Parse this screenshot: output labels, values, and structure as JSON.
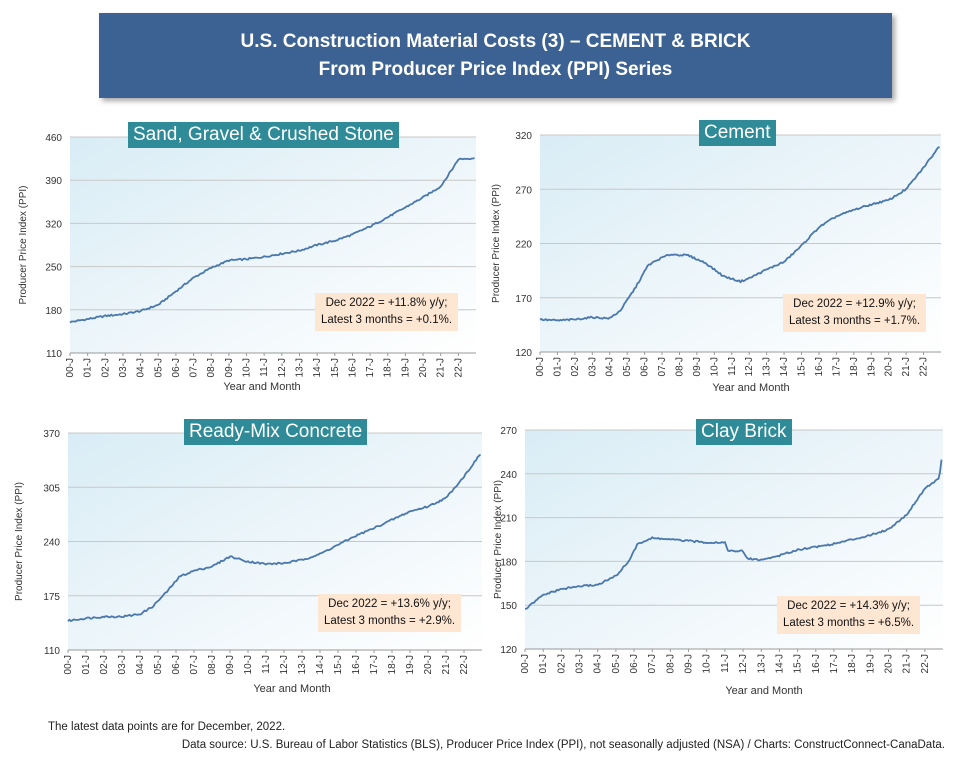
{
  "header": {
    "title_line1": "U.S. Construction Material Costs (3) – CEMENT & BRICK",
    "title_line2": "From Producer Price Index (PPI) Series"
  },
  "footer": {
    "latest": "The latest data points are for December, 2022.",
    "source": "Data source: U.S. Bureau of Labor Statistics (BLS), Producer Price Index (PPI), not seasonally adjusted (NSA) / Charts: ConstructConnect-CanaData."
  },
  "colors": {
    "line": "#4a78ad",
    "title_bg": "#2e8b97",
    "note_bg": "#fde6d2",
    "banner_bg": "#3c6193"
  },
  "chart_data": [
    {
      "type": "line",
      "title": "Sand, Gravel & Crushed Stone",
      "xlabel": "Year and Month",
      "ylabel": "Producer Price Index (PPI)",
      "ylim": [
        110,
        460
      ],
      "yticks": [
        110,
        180,
        250,
        320,
        390,
        460
      ],
      "xticks": [
        "00-J",
        "01-J",
        "02-J",
        "03-J",
        "04-J",
        "05-J",
        "06-J",
        "07-J",
        "08-J",
        "09-J",
        "10-J",
        "11-J",
        "12-J",
        "13-J",
        "14-J",
        "15-J",
        "16-J",
        "17-J",
        "18-J",
        "19-J",
        "20-J",
        "21-J",
        "22-J"
      ],
      "x_start_year": 2000,
      "grid": true,
      "note_line1": "Dec 2022 = +11.8% y/y;",
      "note_line2": "Latest 3 months = +0.1%.",
      "anchors": [
        [
          2000,
          160
        ],
        [
          2001,
          165
        ],
        [
          2002,
          170
        ],
        [
          2003,
          173
        ],
        [
          2004,
          178
        ],
        [
          2005,
          188
        ],
        [
          2006,
          210
        ],
        [
          2007,
          232
        ],
        [
          2008,
          248
        ],
        [
          2009,
          260
        ],
        [
          2010,
          262
        ],
        [
          2011,
          266
        ],
        [
          2012,
          271
        ],
        [
          2013,
          276
        ],
        [
          2014,
          285
        ],
        [
          2015,
          292
        ],
        [
          2016,
          302
        ],
        [
          2017,
          315
        ],
        [
          2018,
          330
        ],
        [
          2019,
          346
        ],
        [
          2020,
          362
        ],
        [
          2021,
          380
        ],
        [
          2021.7,
          410
        ],
        [
          2022,
          424
        ],
        [
          2022.92,
          426
        ]
      ]
    },
    {
      "type": "line",
      "title": "Cement",
      "xlabel": "Year and Month",
      "ylabel": "Producer Price Index (PPI)",
      "ylim": [
        120,
        320
      ],
      "yticks": [
        120,
        170,
        220,
        270,
        320
      ],
      "xticks": [
        "00-J",
        "01-J",
        "02-J",
        "03-J",
        "04-J",
        "05-J",
        "06-J",
        "07-J",
        "08-J",
        "09-J",
        "10-J",
        "11-J",
        "12-J",
        "13-J",
        "14-J",
        "15-J",
        "16-J",
        "17-J",
        "18-J",
        "19-J",
        "20-J",
        "21-J",
        "22-J"
      ],
      "x_start_year": 2000,
      "grid": true,
      "note_line1": "Dec 2022 = +12.9% y/y;",
      "note_line2": "Latest 3 months = +1.7%.",
      "anchors": [
        [
          2000,
          150
        ],
        [
          2001,
          149
        ],
        [
          2002,
          150
        ],
        [
          2003,
          152
        ],
        [
          2004,
          151
        ],
        [
          2004.6,
          158
        ],
        [
          2005.5,
          180
        ],
        [
          2006.2,
          200
        ],
        [
          2007,
          207
        ],
        [
          2007.5,
          210
        ],
        [
          2008.5,
          209
        ],
        [
          2009.5,
          202
        ],
        [
          2010.5,
          190
        ],
        [
          2011.5,
          185
        ],
        [
          2012,
          188
        ],
        [
          2013,
          196
        ],
        [
          2014,
          203
        ],
        [
          2015,
          218
        ],
        [
          2016,
          235
        ],
        [
          2017,
          245
        ],
        [
          2018,
          251
        ],
        [
          2019,
          256
        ],
        [
          2020,
          260
        ],
        [
          2021,
          270
        ],
        [
          2022,
          290
        ],
        [
          2022.92,
          310
        ]
      ]
    },
    {
      "type": "line",
      "title": "Ready-Mix Concrete",
      "xlabel": "Year and Month",
      "ylabel": "Producer Price Index (PPI)",
      "ylim": [
        110,
        370
      ],
      "yticks": [
        110,
        175,
        240,
        305,
        370
      ],
      "xticks": [
        "00-J",
        "01-J",
        "02-J",
        "03-J",
        "04-J",
        "05-J",
        "06-J",
        "07-J",
        "08-J",
        "09-J",
        "10-J",
        "11-J",
        "12-J",
        "13-J",
        "14-J",
        "15-J",
        "16-J",
        "17-J",
        "18-J",
        "19-J",
        "20-J",
        "21-J",
        "22-J"
      ],
      "x_start_year": 2000,
      "grid": true,
      "note_line1": "Dec 2022 = +13.6% y/y;",
      "note_line2": "Latest 3 months = +2.9%.",
      "anchors": [
        [
          2000,
          145
        ],
        [
          2001,
          148
        ],
        [
          2002,
          150
        ],
        [
          2003,
          150
        ],
        [
          2004,
          153
        ],
        [
          2004.7,
          162
        ],
        [
          2005.5,
          180
        ],
        [
          2006.2,
          198
        ],
        [
          2007,
          205
        ],
        [
          2008,
          210
        ],
        [
          2009,
          222
        ],
        [
          2010,
          216
        ],
        [
          2011,
          213
        ],
        [
          2012,
          214
        ],
        [
          2013,
          218
        ],
        [
          2014,
          225
        ],
        [
          2015,
          236
        ],
        [
          2016,
          247
        ],
        [
          2017,
          256
        ],
        [
          2018,
          266
        ],
        [
          2019,
          276
        ],
        [
          2020,
          282
        ],
        [
          2021,
          292
        ],
        [
          2022,
          318
        ],
        [
          2022.92,
          345
        ]
      ]
    },
    {
      "type": "line",
      "title": "Clay Brick",
      "xlabel": "Year and Month",
      "ylabel": "Producer Price Index (PPI)",
      "ylim": [
        120,
        270
      ],
      "yticks": [
        120,
        150,
        180,
        210,
        240,
        270
      ],
      "xticks": [
        "00-J",
        "01-J",
        "02-J",
        "03-J",
        "04-J",
        "05-J",
        "06-J",
        "07-J",
        "08-J",
        "09-J",
        "10-J",
        "11-J",
        "12-J",
        "13-J",
        "14-J",
        "15-J",
        "16-J",
        "17-J",
        "18-J",
        "19-J",
        "20-J",
        "21-J",
        "22-J"
      ],
      "x_start_year": 2000,
      "grid": true,
      "note_line1": "Dec 2022 = +14.3% y/y;",
      "note_line2": "Latest 3 months = +6.5%.",
      "anchors": [
        [
          2000,
          147
        ],
        [
          2001,
          157
        ],
        [
          2002,
          161
        ],
        [
          2003,
          163
        ],
        [
          2004,
          164
        ],
        [
          2005,
          170
        ],
        [
          2005.7,
          180
        ],
        [
          2006.2,
          192
        ],
        [
          2007,
          196
        ],
        [
          2008,
          195
        ],
        [
          2009,
          194
        ],
        [
          2010,
          193
        ],
        [
          2011,
          193
        ],
        [
          2011.2,
          187
        ],
        [
          2012,
          187
        ],
        [
          2012.2,
          182
        ],
        [
          2013,
          181
        ],
        [
          2014,
          184
        ],
        [
          2015,
          188
        ],
        [
          2016,
          190
        ],
        [
          2017,
          192
        ],
        [
          2018,
          195
        ],
        [
          2019,
          198
        ],
        [
          2020,
          202
        ],
        [
          2021,
          212
        ],
        [
          2022,
          230
        ],
        [
          2022.8,
          237
        ],
        [
          2022.92,
          250
        ]
      ]
    }
  ]
}
